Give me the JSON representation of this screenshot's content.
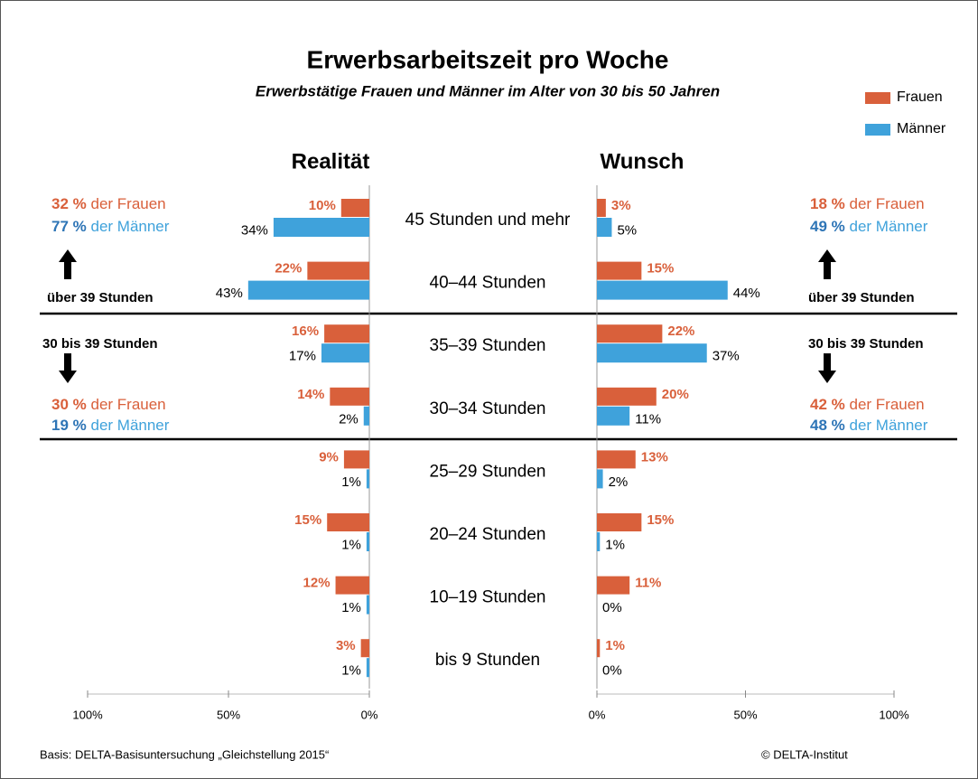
{
  "header": {
    "title": "Erwerbsarbeitszeit pro Woche",
    "subtitle": "Erwerbstätige Frauen und Männer im Alter von 30 bis 50 Jahren"
  },
  "chart_data": [
    {
      "type": "bar",
      "orientation": "horizontal",
      "title": "Realität",
      "categories": [
        "45 Stunden und mehr",
        "40–44 Stunden",
        "35–39 Stunden",
        "30–34 Stunden",
        "25–29 Stunden",
        "20–24 Stunden",
        "10–19 Stunden",
        "bis 9 Stunden"
      ],
      "series": [
        {
          "name": "Frauen",
          "color": "#d9603b",
          "values": [
            10,
            22,
            16,
            14,
            9,
            15,
            12,
            3
          ],
          "value_labels": [
            "10%",
            "22%",
            "16%",
            "14%",
            "9%",
            "15%",
            "12%",
            "3%"
          ]
        },
        {
          "name": "Männer",
          "color": "#3fa2db",
          "values": [
            34,
            43,
            17,
            2,
            1,
            1,
            1,
            1
          ],
          "value_labels": [
            "34%",
            "43%",
            "17%",
            "2%",
            "1%",
            "1%",
            "1%",
            "1%"
          ]
        }
      ],
      "xlim": [
        100,
        0
      ],
      "xticks": [
        {
          "value": 100,
          "label": "100%"
        },
        {
          "value": 50,
          "label": "50%"
        },
        {
          "value": 0,
          "label": "0%"
        }
      ],
      "groups": [
        {
          "label": "über 39 Stunden",
          "lines": [
            {
              "value": "32 %",
              "text": "der Frauen"
            },
            {
              "value": "77 %",
              "text": "der Männer"
            }
          ]
        },
        {
          "label": "30 bis 39 Stunden",
          "lines": [
            {
              "value": "30 %",
              "text": "der Frauen"
            },
            {
              "value": "19 %",
              "text": "der Männer"
            }
          ]
        }
      ]
    },
    {
      "type": "bar",
      "orientation": "horizontal",
      "title": "Wunsch",
      "series": [
        {
          "name": "Frauen",
          "color": "#d9603b",
          "values": [
            3,
            15,
            22,
            20,
            13,
            15,
            11,
            1
          ],
          "value_labels": [
            "3%",
            "15%",
            "22%",
            "20%",
            "13%",
            "15%",
            "11%",
            "1%"
          ]
        },
        {
          "name": "Männer",
          "color": "#3fa2db",
          "values": [
            5,
            44,
            37,
            11,
            2,
            1,
            0,
            0
          ],
          "value_labels": [
            "5%",
            "44%",
            "37%",
            "11%",
            "2%",
            "1%",
            "0%",
            "0%"
          ]
        }
      ],
      "xlim": [
        0,
        100
      ],
      "xticks": [
        {
          "value": 0,
          "label": "0%"
        },
        {
          "value": 50,
          "label": "50%"
        },
        {
          "value": 100,
          "label": "100%"
        }
      ],
      "groups": [
        {
          "label": "über 39 Stunden",
          "lines": [
            {
              "value": "18 %",
              "text": "der Frauen"
            },
            {
              "value": "49 %",
              "text": "der Männer"
            }
          ]
        },
        {
          "label": "30 bis 39 Stunden",
          "lines": [
            {
              "value": "42 %",
              "text": "der Frauen"
            },
            {
              "value": "48 %",
              "text": "der Männer"
            }
          ]
        }
      ]
    }
  ],
  "footer": {
    "source": "Basis: DELTA-Basisuntersuchung „Gleichstellung 2015“",
    "credit": "© DELTA-Institut"
  }
}
